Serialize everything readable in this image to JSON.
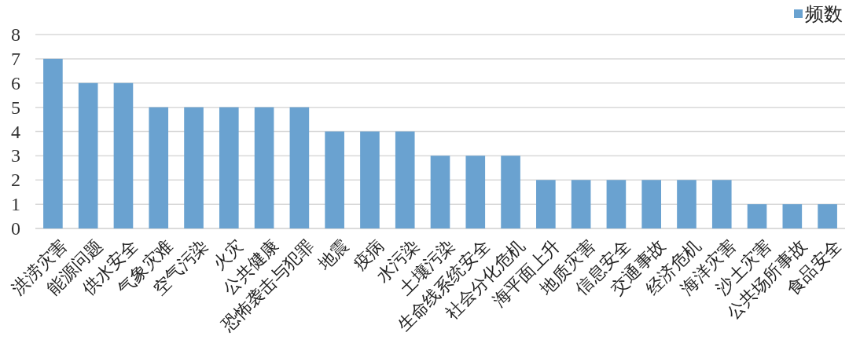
{
  "chart_data": {
    "type": "bar",
    "categories": [
      "洪涝灾害",
      "能源问题",
      "供水安全",
      "气象灾难",
      "空气污染",
      "火灾",
      "公共健康",
      "恐怖袭击与犯罪",
      "地震",
      "疫病",
      "水污染",
      "土壤污染",
      "生命线系统安全",
      "社会分化危机",
      "海平面上升",
      "地质灾害",
      "信息安全",
      "交通事故",
      "经济危机",
      "海洋灾害",
      "沙土灾害",
      "公共场所事故",
      "食品安全"
    ],
    "series": [
      {
        "name": "频数",
        "color": "#6aa2d0",
        "values": [
          7,
          6,
          6,
          5,
          5,
          5,
          5,
          5,
          4,
          4,
          4,
          3,
          3,
          3,
          2,
          2,
          2,
          2,
          2,
          2,
          1,
          1,
          1
        ]
      }
    ],
    "ylim": [
      0,
      8
    ],
    "yticks": [
      0,
      1,
      2,
      3,
      4,
      5,
      6,
      7,
      8
    ],
    "grid": "y",
    "legend": "top right"
  }
}
